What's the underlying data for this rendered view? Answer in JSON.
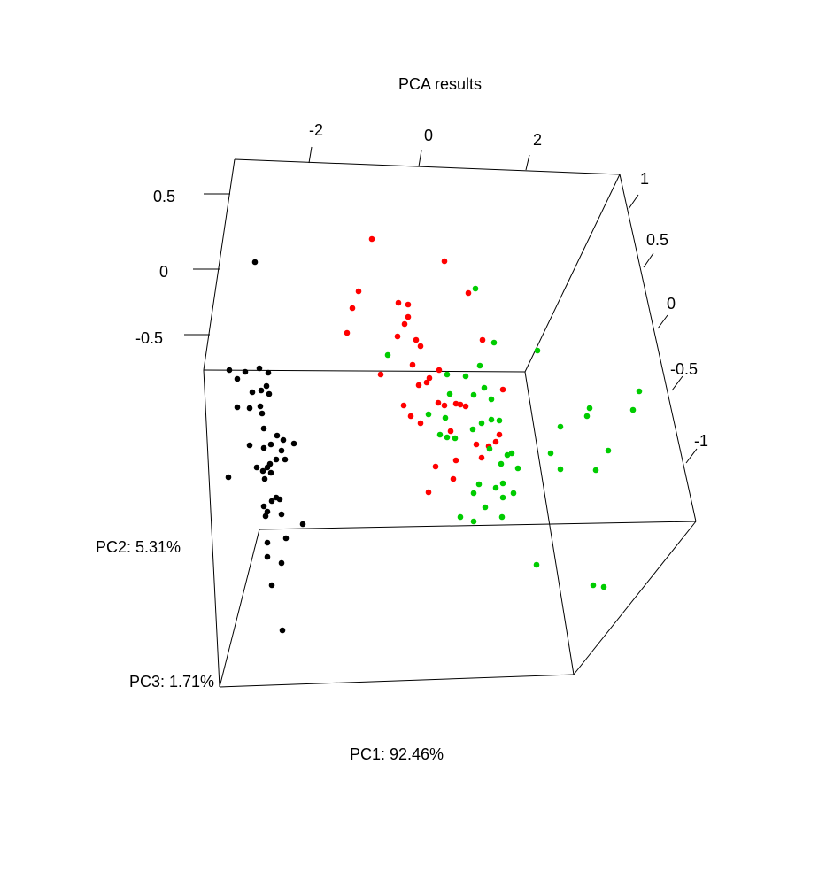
{
  "chart_data": {
    "type": "scatter",
    "title": "PCA results",
    "xlabel": "PC1: 92.46%",
    "ylabel": "PC2: 5.31%",
    "zlabel": "PC3: 1.71%",
    "axes": {
      "pc1": {
        "ticks": [
          "-2",
          "0",
          "2"
        ]
      },
      "pc2": {
        "ticks": [
          "0.5",
          "0",
          "-0.5"
        ]
      },
      "pc3": {
        "ticks": [
          "1",
          "0.5",
          "0",
          "-0.5",
          "-1"
        ]
      }
    },
    "colors": {
      "group_a": "#000000",
      "group_b": "#ff0000",
      "group_c": "#00cc00"
    },
    "series": [
      {
        "color": "#000000",
        "points": [
          [
            288,
            296
          ],
          [
            259,
            418
          ],
          [
            277,
            420
          ],
          [
            293,
            416
          ],
          [
            303,
            421
          ],
          [
            268,
            428
          ],
          [
            301,
            436
          ],
          [
            295,
            441
          ],
          [
            285,
            443
          ],
          [
            304,
            445
          ],
          [
            268,
            460
          ],
          [
            282,
            461
          ],
          [
            294,
            459
          ],
          [
            296,
            467
          ],
          [
            298,
            484
          ],
          [
            313,
            492
          ],
          [
            320,
            497
          ],
          [
            306,
            502
          ],
          [
            332,
            501
          ],
          [
            282,
            503
          ],
          [
            298,
            506
          ],
          [
            318,
            509
          ],
          [
            312,
            519
          ],
          [
            322,
            519
          ],
          [
            290,
            528
          ],
          [
            305,
            524
          ],
          [
            302,
            528
          ],
          [
            297,
            532
          ],
          [
            306,
            534
          ],
          [
            258,
            539
          ],
          [
            299,
            541
          ],
          [
            312,
            562
          ],
          [
            316,
            564
          ],
          [
            307,
            566
          ],
          [
            298,
            572
          ],
          [
            302,
            578
          ],
          [
            318,
            581
          ],
          [
            300,
            583
          ],
          [
            342,
            592
          ],
          [
            323,
            608
          ],
          [
            302,
            613
          ],
          [
            318,
            636
          ],
          [
            302,
            629
          ],
          [
            307,
            661
          ],
          [
            319,
            712
          ]
        ]
      },
      {
        "color": "#ff0000",
        "points": [
          [
            420,
            270
          ],
          [
            502,
            295
          ],
          [
            405,
            329
          ],
          [
            529,
            331
          ],
          [
            450,
            342
          ],
          [
            461,
            344
          ],
          [
            398,
            348
          ],
          [
            461,
            358
          ],
          [
            457,
            366
          ],
          [
            392,
            376
          ],
          [
            449,
            380
          ],
          [
            470,
            384
          ],
          [
            475,
            391
          ],
          [
            545,
            384
          ],
          [
            466,
            412
          ],
          [
            430,
            423
          ],
          [
            496,
            418
          ],
          [
            485,
            427
          ],
          [
            473,
            435
          ],
          [
            482,
            432
          ],
          [
            568,
            440
          ],
          [
            456,
            458
          ],
          [
            495,
            455
          ],
          [
            515,
            456
          ],
          [
            520,
            457
          ],
          [
            502,
            458
          ],
          [
            464,
            470
          ],
          [
            475,
            478
          ],
          [
            509,
            487
          ],
          [
            538,
            502
          ],
          [
            564,
            491
          ],
          [
            560,
            499
          ],
          [
            552,
            504
          ],
          [
            515,
            520
          ],
          [
            492,
            527
          ],
          [
            512,
            541
          ],
          [
            484,
            556
          ],
          [
            544,
            517
          ],
          [
            526,
            459
          ]
        ]
      },
      {
        "color": "#00cc00",
        "points": [
          [
            537,
            326
          ],
          [
            558,
            387
          ],
          [
            607,
            396
          ],
          [
            438,
            401
          ],
          [
            542,
            413
          ],
          [
            505,
            423
          ],
          [
            526,
            425
          ],
          [
            547,
            438
          ],
          [
            535,
            446
          ],
          [
            722,
            442
          ],
          [
            555,
            451
          ],
          [
            508,
            445
          ],
          [
            484,
            468
          ],
          [
            666,
            461
          ],
          [
            663,
            470
          ],
          [
            715,
            463
          ],
          [
            503,
            472
          ],
          [
            555,
            474
          ],
          [
            544,
            478
          ],
          [
            534,
            485
          ],
          [
            564,
            475
          ],
          [
            497,
            491
          ],
          [
            514,
            495
          ],
          [
            505,
            494
          ],
          [
            633,
            482
          ],
          [
            687,
            509
          ],
          [
            553,
            507
          ],
          [
            573,
            514
          ],
          [
            578,
            512
          ],
          [
            622,
            512
          ],
          [
            566,
            524
          ],
          [
            585,
            529
          ],
          [
            633,
            530
          ],
          [
            673,
            531
          ],
          [
            541,
            547
          ],
          [
            568,
            546
          ],
          [
            560,
            551
          ],
          [
            580,
            557
          ],
          [
            535,
            557
          ],
          [
            568,
            562
          ],
          [
            548,
            573
          ],
          [
            520,
            584
          ],
          [
            535,
            589
          ],
          [
            567,
            584
          ],
          [
            606,
            638
          ],
          [
            670,
            661
          ],
          [
            682,
            663
          ]
        ]
      }
    ]
  }
}
